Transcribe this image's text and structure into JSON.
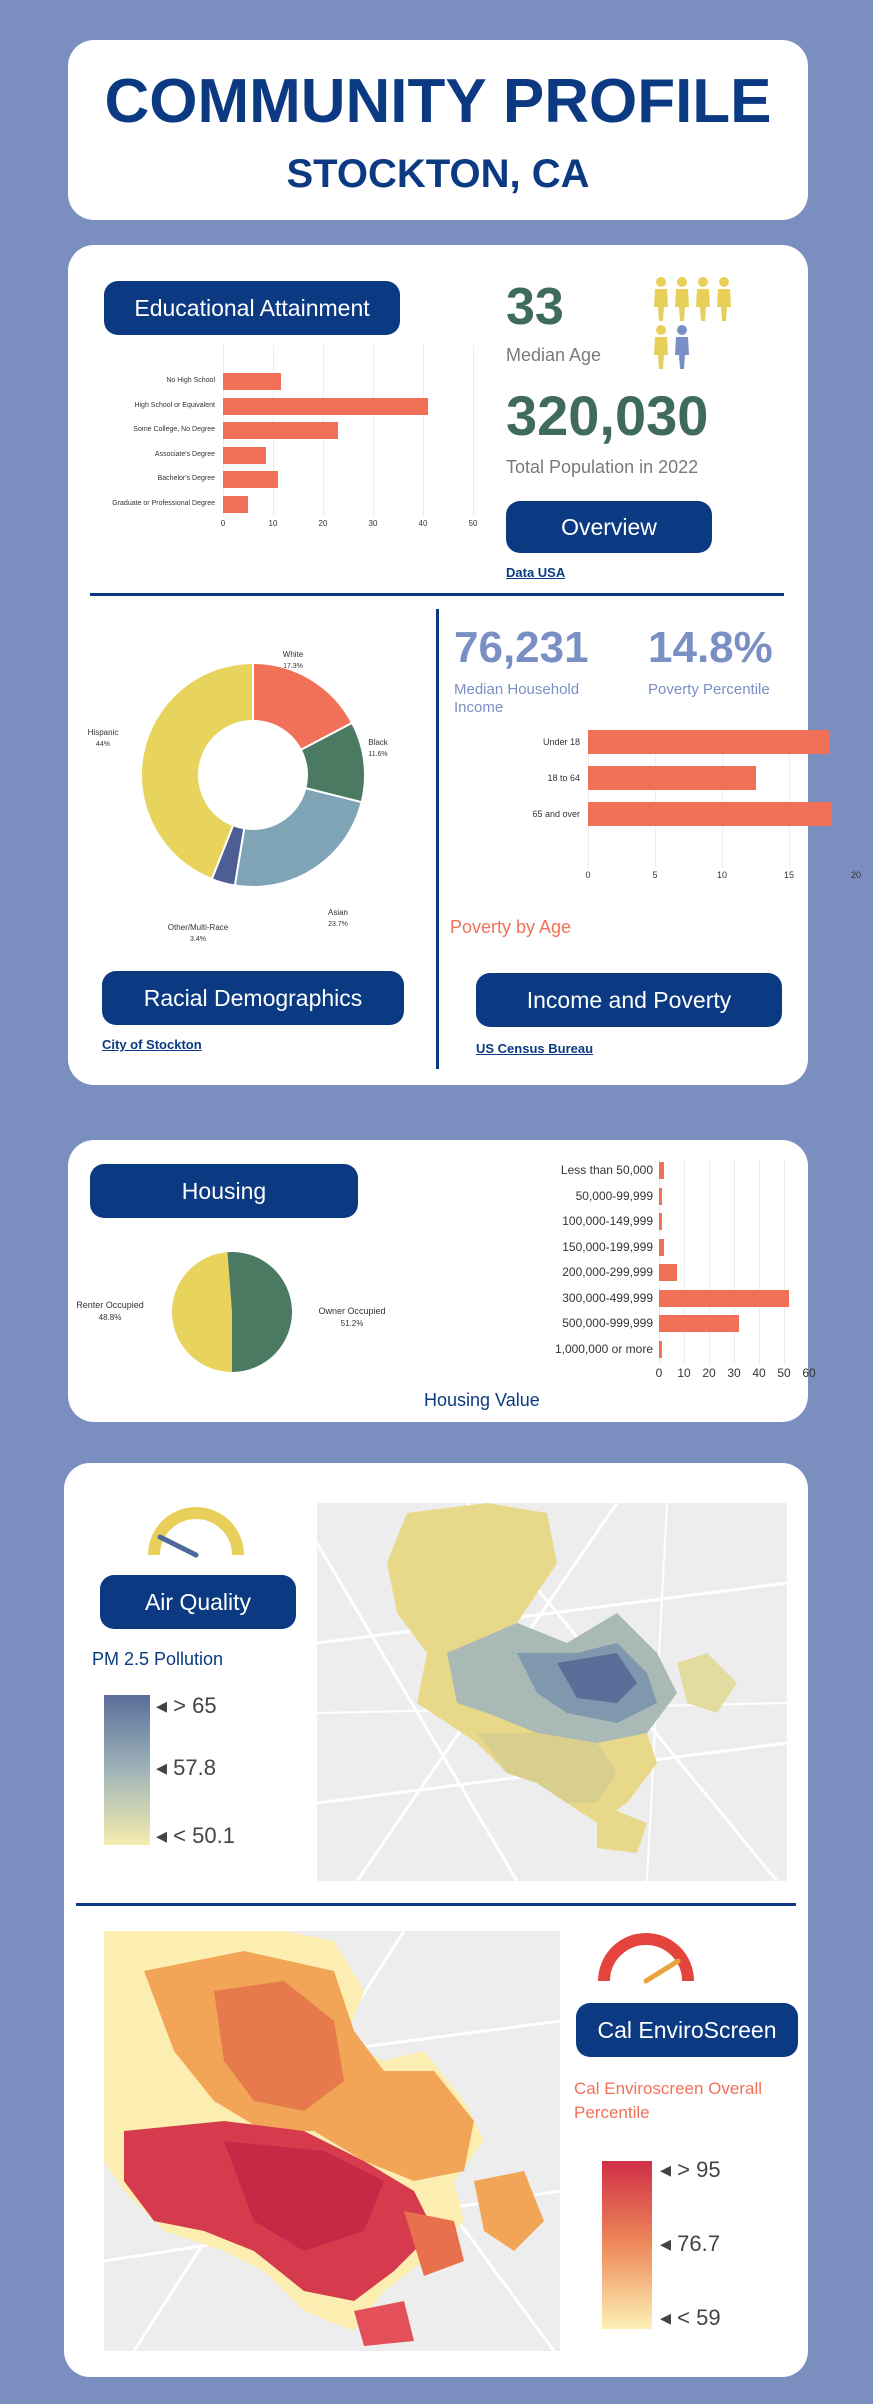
{
  "header": {
    "title": "COMMUNITY PROFILE",
    "subtitle": "STOCKTON, CA"
  },
  "overview": {
    "education_title": "Educational Attainment",
    "median_age": "33",
    "median_age_label": "Median Age",
    "population": "320,030",
    "population_label": "Total Population in 2022",
    "overview_button": "Overview",
    "source": "Data USA",
    "education_chart": {
      "type": "bar",
      "categories": [
        "No High School",
        "High School or Equivalent",
        "Some College, No Degree",
        "Associate's Degree",
        "Bachelor's Degree",
        "Graduate or Professional Degree"
      ],
      "values": [
        11.5,
        41,
        23,
        8.5,
        11,
        5
      ],
      "ticks": [
        "0",
        "10",
        "20",
        "30",
        "40",
        "50"
      ],
      "xlim": [
        0,
        50
      ]
    }
  },
  "race": {
    "title": "Racial Demographics",
    "source": "City of Stockton",
    "chart_data": {
      "type": "pie",
      "labels": [
        "White",
        "Black",
        "Asian",
        "Other/Multi-Race",
        "Hispanic"
      ],
      "values": [
        17.3,
        11.6,
        23.7,
        3.4,
        44
      ],
      "value_labels": [
        "17.3%",
        "11.6%",
        "23.7%",
        "3.4%",
        "44%"
      ],
      "colors": [
        "#f07158",
        "#4a7a62",
        "#7fa4b6",
        "#4d5e95",
        "#e8d45c"
      ]
    }
  },
  "income": {
    "median_income": "76,231",
    "median_income_label": "Median Household Income",
    "poverty_pct": "14.8%",
    "poverty_label": "Poverty Percentile",
    "chart_title": "Poverty by Age",
    "title": "Income and Poverty",
    "source": "US Census Bureau",
    "chart_data": {
      "type": "bar",
      "categories": [
        "Under 18",
        "18 to 64",
        "65 and over"
      ],
      "values": [
        18,
        12.5,
        18.2
      ],
      "ticks": [
        "0",
        "5",
        "10",
        "15",
        "20"
      ],
      "xlim": [
        0,
        20
      ]
    }
  },
  "housing": {
    "title": "Housing",
    "chart_title": "Housing Value",
    "pie": {
      "labels": [
        "Renter Occupied",
        "Owner Occupied"
      ],
      "value_labels": [
        "48.8%",
        "51.2%"
      ],
      "values": [
        48.8,
        51.2
      ],
      "colors": [
        "#e8d45c",
        "#4a7a62"
      ]
    },
    "chart_data": {
      "type": "bar",
      "categories": [
        "Less than 50,000",
        "50,000-99,999",
        "100,000-149,999",
        "150,000-199,999",
        "200,000-299,999",
        "300,000-499,999",
        "500,000-999,999",
        "1,000,000 or more"
      ],
      "values": [
        2,
        1,
        1,
        2,
        7,
        52,
        32,
        1
      ],
      "ticks": [
        "0",
        "10",
        "20",
        "30",
        "40",
        "50",
        "60"
      ],
      "xlim": [
        0,
        60
      ]
    }
  },
  "air": {
    "title": "Air Quality",
    "legend_title": "PM 2.5 Pollution",
    "legend": [
      "> 65",
      "57.8",
      "< 50.1"
    ]
  },
  "enviro": {
    "title": "Cal EnviroScreen",
    "legend_title": "Cal Enviroscreen Overall Percentile",
    "legend": [
      "> 95",
      "76.7",
      "< 59"
    ]
  }
}
